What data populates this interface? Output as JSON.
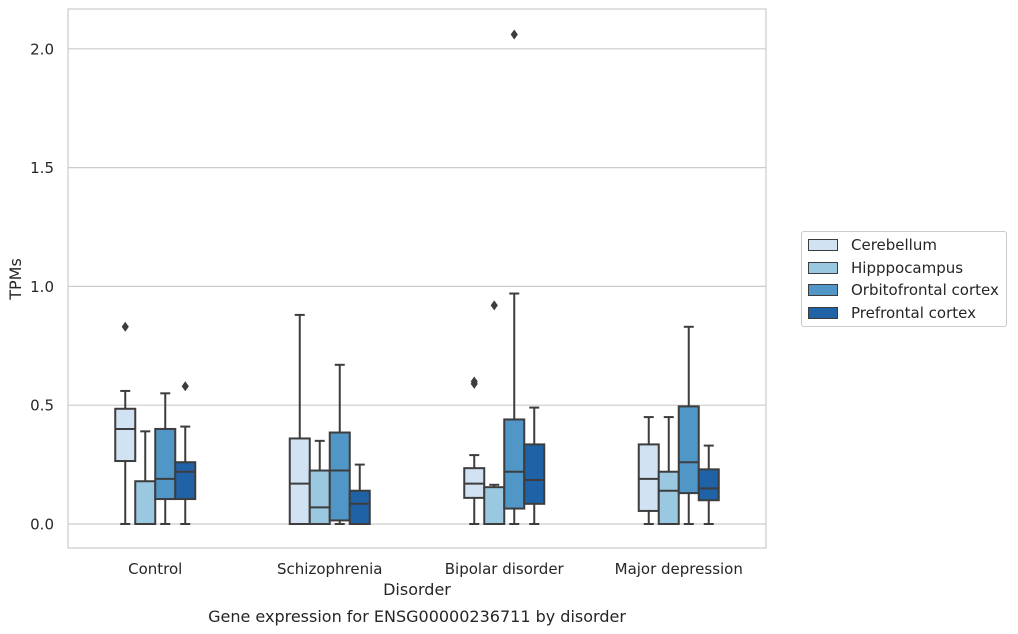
{
  "chart_data": {
    "type": "box",
    "title": "Gene expression for ENSG00000236711 by disorder",
    "xlabel": "Disorder",
    "ylabel": "TPMs",
    "ylim": [
      -0.1,
      2.17
    ],
    "yticks": [
      0.0,
      0.5,
      1.0,
      1.5,
      2.0
    ],
    "ytick_labels": [
      "0.0",
      "0.5",
      "1.0",
      "1.5",
      "2.0"
    ],
    "grid": "horizontal",
    "legend_placement": "center-right outside",
    "categories": [
      "Control",
      "Schizophrenia",
      "Bipolar disorder",
      "Major depression"
    ],
    "series": [
      {
        "name": "Cerebellum",
        "color": "#d1e2f2",
        "boxes": [
          {
            "whislo": 0.0,
            "q1": 0.265,
            "med": 0.4,
            "q3": 0.485,
            "whishi": 0.56,
            "fliers": [
              0.83
            ]
          },
          {
            "whislo": 0.0,
            "q1": 0.0,
            "med": 0.17,
            "q3": 0.36,
            "whishi": 0.88,
            "fliers": []
          },
          {
            "whislo": 0.0,
            "q1": 0.11,
            "med": 0.17,
            "q3": 0.235,
            "whishi": 0.29,
            "fliers": [
              0.59,
              0.6
            ]
          },
          {
            "whislo": 0.0,
            "q1": 0.055,
            "med": 0.19,
            "q3": 0.335,
            "whishi": 0.45,
            "fliers": []
          }
        ]
      },
      {
        "name": "Hipppocampus",
        "color": "#9ac8e0",
        "boxes": [
          {
            "whislo": 0.0,
            "q1": 0.0,
            "med": 0.0,
            "q3": 0.18,
            "whishi": 0.39,
            "fliers": []
          },
          {
            "whislo": 0.0,
            "q1": 0.0,
            "med": 0.07,
            "q3": 0.225,
            "whishi": 0.35,
            "fliers": []
          },
          {
            "whislo": 0.0,
            "q1": 0.0,
            "med": 0.0,
            "q3": 0.155,
            "whishi": 0.165,
            "fliers": [
              0.92
            ]
          },
          {
            "whislo": 0.0,
            "q1": 0.0,
            "med": 0.14,
            "q3": 0.22,
            "whishi": 0.45,
            "fliers": []
          }
        ]
      },
      {
        "name": "Orbitofrontal cortex",
        "color": "#5096c6",
        "boxes": [
          {
            "whislo": 0.0,
            "q1": 0.105,
            "med": 0.19,
            "q3": 0.4,
            "whishi": 0.55,
            "fliers": []
          },
          {
            "whislo": 0.0,
            "q1": 0.015,
            "med": 0.225,
            "q3": 0.385,
            "whishi": 0.67,
            "fliers": []
          },
          {
            "whislo": 0.0,
            "q1": 0.065,
            "med": 0.22,
            "q3": 0.44,
            "whishi": 0.97,
            "fliers": [
              2.06
            ]
          },
          {
            "whislo": 0.0,
            "q1": 0.13,
            "med": 0.26,
            "q3": 0.495,
            "whishi": 0.83,
            "fliers": []
          }
        ]
      },
      {
        "name": "Prefrontal cortex",
        "color": "#1f62a6",
        "boxes": [
          {
            "whislo": 0.0,
            "q1": 0.105,
            "med": 0.22,
            "q3": 0.26,
            "whishi": 0.41,
            "fliers": [
              0.58
            ]
          },
          {
            "whislo": 0.0,
            "q1": 0.0,
            "med": 0.085,
            "q3": 0.14,
            "whishi": 0.25,
            "fliers": []
          },
          {
            "whislo": 0.0,
            "q1": 0.085,
            "med": 0.185,
            "q3": 0.335,
            "whishi": 0.49,
            "fliers": []
          },
          {
            "whislo": 0.0,
            "q1": 0.1,
            "med": 0.15,
            "q3": 0.23,
            "whishi": 0.33,
            "fliers": []
          }
        ]
      }
    ]
  }
}
